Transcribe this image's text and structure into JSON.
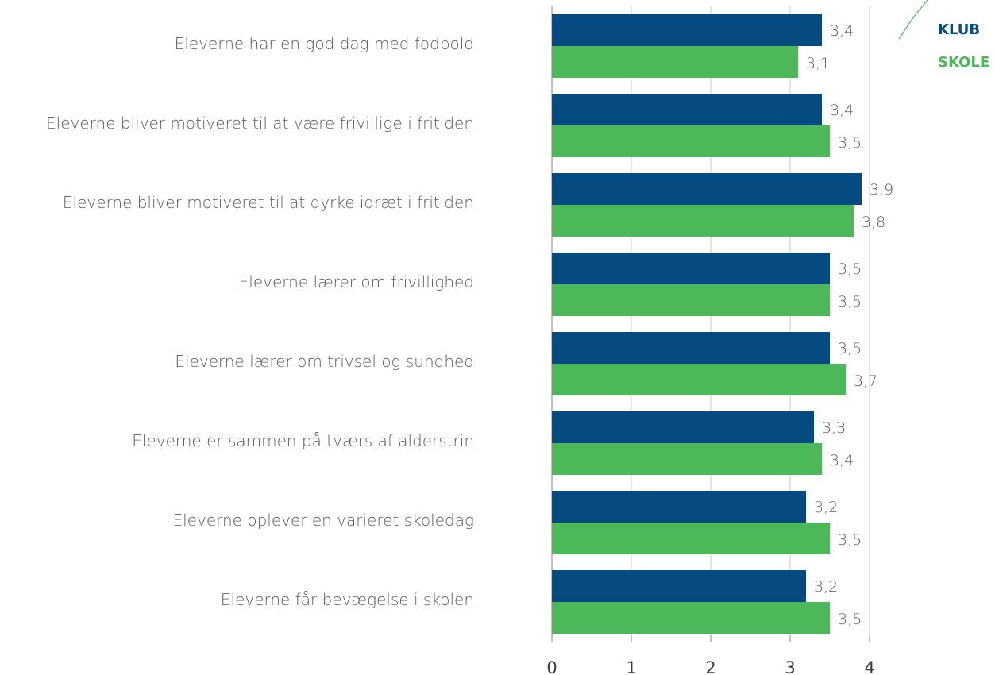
{
  "chart_data": {
    "type": "bar",
    "orientation": "horizontal",
    "categories": [
      "Eleverne har en god dag med fodbold",
      "Eleverne bliver motiveret til at være frivillige i fritiden",
      "Eleverne bliver motiveret til at dyrke idræt i fritiden",
      "Eleverne lærer om frivillighed",
      "Eleverne lærer om trivsel og sundhed",
      "Eleverne er sammen på tværs af alderstrin",
      "Eleverne oplever en varieret skoledag",
      "Eleverne får bevægelse i skolen"
    ],
    "series": [
      {
        "name": "KLUB",
        "color": "#054b82",
        "values": [
          3.4,
          3.4,
          3.9,
          3.5,
          3.5,
          3.3,
          3.2,
          3.2
        ],
        "value_labels": [
          "3,4",
          "3,4",
          "3,9",
          "3,5",
          "3,5",
          "3,3",
          "3,2",
          "3,2"
        ]
      },
      {
        "name": "SKOLE",
        "color": "#4cb85a",
        "values": [
          3.1,
          3.5,
          3.8,
          3.5,
          3.7,
          3.4,
          3.5,
          3.5
        ],
        "value_labels": [
          "3,1",
          "3,5",
          "3,8",
          "3,5",
          "3,7",
          "3,4",
          "3,5",
          "3,5"
        ]
      }
    ],
    "xlim": [
      0,
      4
    ],
    "xticks": [
      "0",
      "1",
      "2",
      "3",
      "4"
    ],
    "grid": true,
    "legend_position": "top-right",
    "title": "",
    "xlabel": "",
    "ylabel": ""
  }
}
